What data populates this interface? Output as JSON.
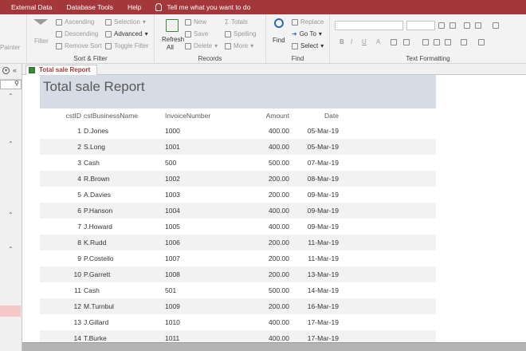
{
  "menu": {
    "items": [
      "External Data",
      "Database Tools",
      "Help"
    ],
    "tell_me": "Tell me what you want to do"
  },
  "ribbon": {
    "clipboard": {
      "painter": "Painter"
    },
    "sort_filter": {
      "label": "Sort & Filter",
      "filter": "Filter",
      "ascending": "Ascending",
      "descending": "Descending",
      "remove_sort": "Remove Sort",
      "selection": "Selection",
      "advanced": "Advanced",
      "toggle_filter": "Toggle Filter"
    },
    "records": {
      "label": "Records",
      "refresh_all_1": "Refresh",
      "refresh_all_2": "All",
      "new": "New",
      "save": "Save",
      "delete": "Delete",
      "totals": "Totals",
      "spelling": "Spelling",
      "more": "More"
    },
    "find": {
      "label": "Find",
      "find": "Find",
      "replace": "Replace",
      "goto": "Go To",
      "select": "Select"
    },
    "text_formatting": {
      "label": "Text Formatting",
      "bold": "B",
      "italic": "I",
      "underline": "U",
      "font_color": "A"
    }
  },
  "tab": {
    "label": "Total sale Report"
  },
  "report": {
    "title": "Total sale Report",
    "columns": [
      "cstID",
      "cstBusinessName",
      "InvoiceNumber",
      "Amount",
      "Date"
    ],
    "rows": [
      {
        "id": "1",
        "name": "D.Jones",
        "invoice": "1000",
        "amount": "400.00",
        "date": "05-Mar-19"
      },
      {
        "id": "2",
        "name": "S.Long",
        "invoice": "1001",
        "amount": "400.00",
        "date": "05-Mar-19"
      },
      {
        "id": "3",
        "name": "Cash",
        "invoice": "500",
        "amount": "500.00",
        "date": "07-Mar-19"
      },
      {
        "id": "4",
        "name": "R.Brown",
        "invoice": "1002",
        "amount": "200.00",
        "date": "08-Mar-19"
      },
      {
        "id": "5",
        "name": "A.Davies",
        "invoice": "1003",
        "amount": "200.00",
        "date": "09-Mar-19"
      },
      {
        "id": "6",
        "name": "P.Hanson",
        "invoice": "1004",
        "amount": "400.00",
        "date": "09-Mar-19"
      },
      {
        "id": "7",
        "name": "J.Howard",
        "invoice": "1005",
        "amount": "400.00",
        "date": "09-Mar-19"
      },
      {
        "id": "8",
        "name": "K.Rudd",
        "invoice": "1006",
        "amount": "200.00",
        "date": "11-Mar-19"
      },
      {
        "id": "9",
        "name": "P.Costello",
        "invoice": "1007",
        "amount": "200.00",
        "date": "11-Mar-19"
      },
      {
        "id": "10",
        "name": "P.Garrett",
        "invoice": "1008",
        "amount": "200.00",
        "date": "13-Mar-19"
      },
      {
        "id": "11",
        "name": "Cash",
        "invoice": "501",
        "amount": "500.00",
        "date": "14-Mar-19"
      },
      {
        "id": "12",
        "name": "M.Turnbul",
        "invoice": "1009",
        "amount": "200.00",
        "date": "16-Mar-19"
      },
      {
        "id": "13",
        "name": "J.Gillard",
        "invoice": "1010",
        "amount": "400.00",
        "date": "17-Mar-19"
      },
      {
        "id": "14",
        "name": "T.Burke",
        "invoice": "1011",
        "amount": "400.00",
        "date": "17-Mar-19"
      }
    ]
  },
  "nav": {
    "collapse": "«",
    "chevron": "»"
  }
}
